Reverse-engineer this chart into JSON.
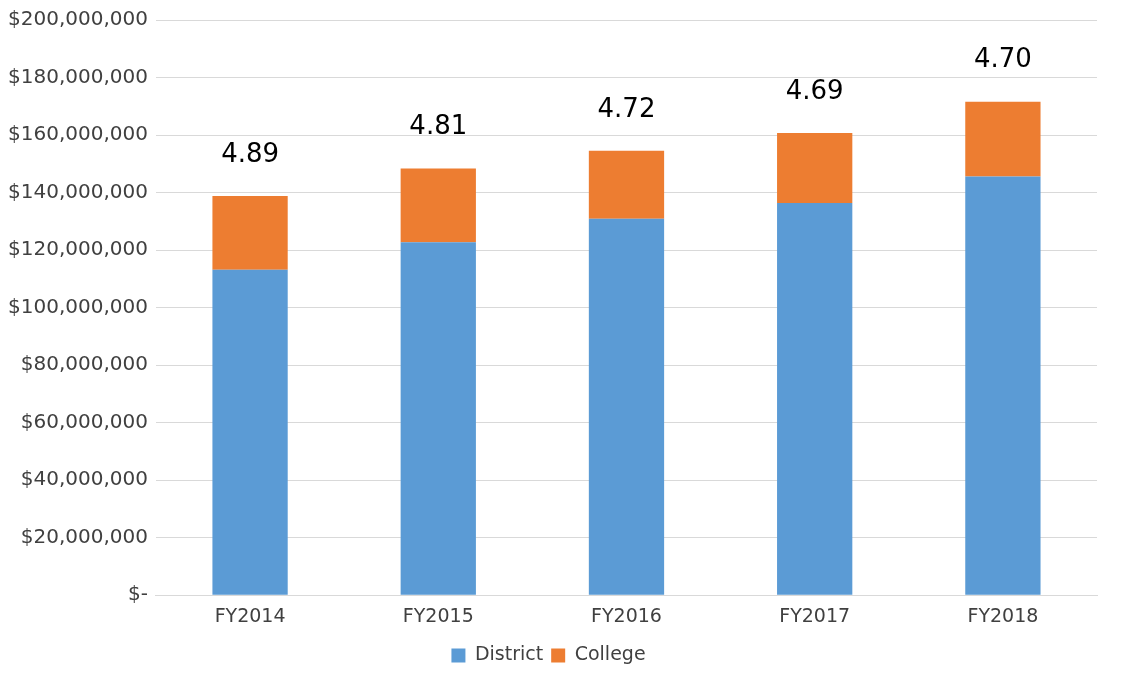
{
  "chart_data": {
    "type": "bar",
    "stacked": true,
    "categories": [
      "FY2014",
      "FY2015",
      "FY2016",
      "FY2017",
      "FY2018"
    ],
    "series": [
      {
        "name": "District",
        "color": "#5b9bd5",
        "values": [
          113200000,
          122700000,
          130900000,
          136400000,
          145600000
        ]
      },
      {
        "name": "College",
        "color": "#ed7d31",
        "values": [
          25600000,
          25700000,
          23600000,
          24300000,
          26000000
        ]
      }
    ],
    "ylim": [
      0,
      200000000
    ],
    "yticks": [
      {
        "value": 0,
        "label": "$-"
      },
      {
        "value": 20000000,
        "label": "$20,000,000"
      },
      {
        "value": 40000000,
        "label": "$40,000,000"
      },
      {
        "value": 60000000,
        "label": "$60,000,000"
      },
      {
        "value": 80000000,
        "label": "$80,000,000"
      },
      {
        "value": 100000000,
        "label": "$100,000,000"
      },
      {
        "value": 120000000,
        "label": "$120,000,000"
      },
      {
        "value": 140000000,
        "label": "$140,000,000"
      },
      {
        "value": 160000000,
        "label": "$160,000,000"
      },
      {
        "value": 180000000,
        "label": "$180,000,000"
      },
      {
        "value": 200000000,
        "label": "$200,000,000"
      }
    ],
    "annotations": [
      {
        "text": "4.89",
        "x": "FY2014",
        "y": 138800000
      },
      {
        "text": "4.81",
        "x": "FY2015",
        "y": 148400000
      },
      {
        "text": "4.72",
        "x": "FY2016",
        "y": 154500000
      },
      {
        "text": "4.69",
        "x": "FY2017",
        "y": 160700000
      },
      {
        "text": "4.70",
        "x": "FY2018",
        "y": 171600000
      }
    ],
    "grid": "y",
    "legend": "bottom"
  }
}
